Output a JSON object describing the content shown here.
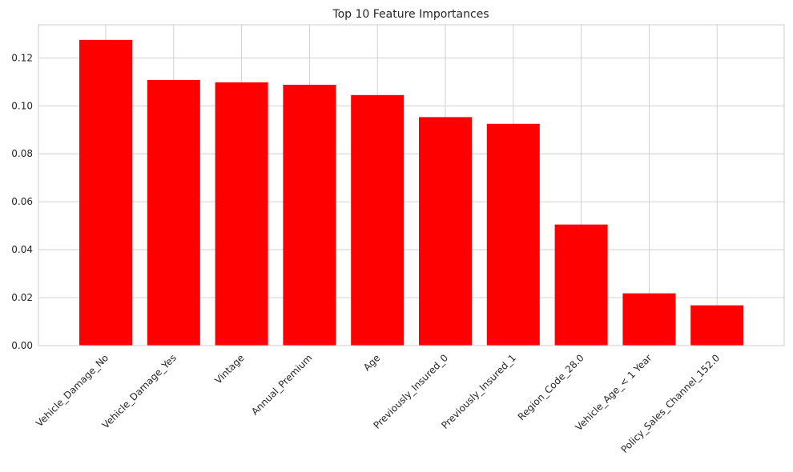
{
  "chart_data": {
    "type": "bar",
    "title": "Top 10 Feature Importances",
    "xlabel": "",
    "ylabel": "",
    "categories": [
      "Vehicle_Damage_No",
      "Vehicle_Damage_Yes",
      "Vintage",
      "Annual_Premium",
      "Age",
      "Previously_Insured_0",
      "Previously_Insured_1",
      "Region_Code_28.0",
      "Vehicle_Age_< 1 Year",
      "Policy_Sales_Channel_152.0"
    ],
    "values": [
      0.1275,
      0.1108,
      0.1098,
      0.1088,
      0.1045,
      0.0953,
      0.0925,
      0.0505,
      0.0218,
      0.0168
    ],
    "ylim": [
      0,
      0.1338
    ],
    "yticks": [
      0.0,
      0.02,
      0.04,
      0.06,
      0.08,
      0.1,
      0.12
    ],
    "ytick_labels": [
      "0.00",
      "0.02",
      "0.04",
      "0.06",
      "0.08",
      "0.10",
      "0.12"
    ],
    "grid": true,
    "bar_color": "#ff0000",
    "grid_color": "#cccccc",
    "x_tick_rotation": 45
  }
}
